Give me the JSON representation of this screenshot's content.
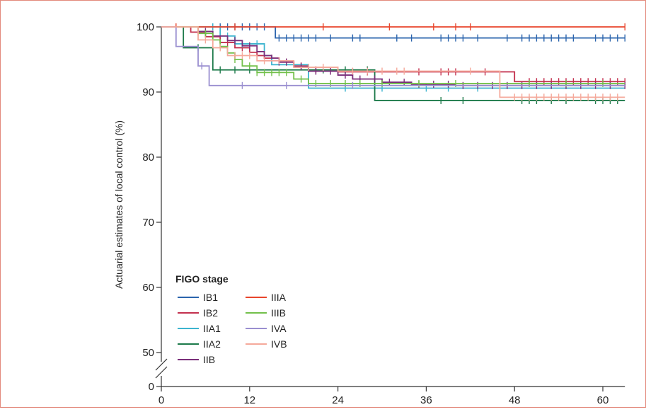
{
  "chart_data": {
    "type": "line",
    "step": true,
    "title": "",
    "xlabel": "",
    "ylabel": "Actuarial estimates of local control (%)",
    "xlim": [
      0,
      63
    ],
    "ylim": [
      0,
      100
    ],
    "y_axis_break": true,
    "x_ticks": [
      0,
      12,
      24,
      36,
      48,
      60
    ],
    "x_tick_labels": [
      "0",
      "12",
      "24",
      "36",
      "48",
      "60"
    ],
    "y_ticks": [
      0,
      50,
      60,
      70,
      80,
      90,
      100
    ],
    "y_tick_labels": [
      "0",
      "50",
      "60",
      "70",
      "80",
      "90",
      "100"
    ],
    "grid": false,
    "legend": {
      "title": "FIGO stage",
      "placement": "bottom-left",
      "columns": 2
    },
    "series": [
      {
        "name": "IB1",
        "color": "#2b64ad",
        "steps": [
          [
            0,
            100
          ],
          [
            15.5,
            98.3
          ],
          [
            63,
            98.3
          ]
        ],
        "censored": [
          7,
          8,
          9,
          10,
          11,
          12,
          13,
          14,
          16,
          17,
          18,
          19,
          20,
          21,
          23,
          26,
          27,
          32,
          34,
          38,
          39,
          40,
          41,
          43,
          47,
          49,
          50,
          51,
          52,
          53,
          54,
          55,
          56,
          59,
          60,
          61,
          62,
          63
        ]
      },
      {
        "name": "IB2",
        "color": "#c3304e",
        "steps": [
          [
            0,
            100
          ],
          [
            4,
            99.2
          ],
          [
            6,
            98.5
          ],
          [
            8,
            97.6
          ],
          [
            10,
            96.8
          ],
          [
            12,
            96.1
          ],
          [
            13,
            95.6
          ],
          [
            14,
            95.2
          ],
          [
            16,
            94.6
          ],
          [
            18,
            94.0
          ],
          [
            20,
            93.4
          ],
          [
            24,
            93.1
          ],
          [
            32,
            93.1
          ],
          [
            48,
            91.6
          ],
          [
            63,
            91.6
          ]
        ],
        "censored": [
          5,
          9,
          11,
          15,
          17,
          19,
          21,
          26,
          28,
          35,
          38,
          39,
          40,
          44,
          50,
          51,
          52,
          53,
          54,
          55,
          56,
          57,
          58,
          59,
          60,
          61,
          62,
          63
        ]
      },
      {
        "name": "IIA1",
        "color": "#3cb4cf",
        "steps": [
          [
            0,
            100
          ],
          [
            8,
            98.6
          ],
          [
            10,
            97.4
          ],
          [
            14,
            95.6
          ],
          [
            15,
            94.2
          ],
          [
            20,
            90.6
          ],
          [
            63,
            90.6
          ]
        ],
        "censored": [
          7,
          9,
          11,
          13,
          25,
          30,
          36,
          39,
          43,
          46
        ]
      },
      {
        "name": "IIA2",
        "color": "#1d7a4a",
        "steps": [
          [
            0,
            100
          ],
          [
            3,
            96.8
          ],
          [
            7,
            93.4
          ],
          [
            29,
            88.7
          ],
          [
            63,
            88.7
          ]
        ],
        "censored": [
          5,
          8,
          10,
          12,
          22,
          25,
          28,
          38,
          41,
          49,
          50,
          51,
          53,
          55,
          59,
          60,
          61,
          62
        ]
      },
      {
        "name": "IIB",
        "color": "#7a2e7a",
        "steps": [
          [
            0,
            100
          ],
          [
            5,
            99.3
          ],
          [
            7,
            98.6
          ],
          [
            9,
            97.9
          ],
          [
            11,
            97.1
          ],
          [
            13,
            96.2
          ],
          [
            14,
            95.6
          ],
          [
            15,
            95.2
          ],
          [
            16,
            94.6
          ],
          [
            18,
            93.9
          ],
          [
            20,
            93.2
          ],
          [
            24,
            92.6
          ],
          [
            26,
            92.0
          ],
          [
            30,
            91.5
          ],
          [
            34,
            91.2
          ],
          [
            40,
            91.0
          ],
          [
            63,
            91.0
          ]
        ],
        "censored": [
          6,
          10,
          12,
          16,
          17,
          19,
          21,
          23,
          25,
          27,
          29,
          31,
          33,
          35,
          37,
          39,
          41,
          43,
          45,
          47,
          49,
          51,
          53,
          55,
          57,
          59,
          61,
          63
        ]
      },
      {
        "name": "IIIA",
        "color": "#e8452c",
        "steps": [
          [
            0,
            100
          ],
          [
            63,
            100
          ]
        ],
        "censored": [
          2,
          10,
          22,
          31,
          37,
          40,
          42,
          63
        ]
      },
      {
        "name": "IIIB",
        "color": "#72c04a",
        "steps": [
          [
            0,
            100
          ],
          [
            5,
            99.0
          ],
          [
            7,
            98.0
          ],
          [
            8,
            97.0
          ],
          [
            9,
            96.0
          ],
          [
            10,
            95.0
          ],
          [
            11,
            94.0
          ],
          [
            13,
            93.0
          ],
          [
            18,
            92.0
          ],
          [
            20,
            91.3
          ],
          [
            26,
            91.3
          ],
          [
            63,
            91.3
          ]
        ],
        "censored": [
          6,
          8,
          10,
          12,
          13,
          14,
          15,
          16,
          17,
          19,
          21,
          23,
          25,
          27,
          30,
          35,
          40,
          46,
          50,
          55,
          60
        ]
      },
      {
        "name": "IVA",
        "color": "#9a8fd0",
        "steps": [
          [
            0,
            100
          ],
          [
            2,
            97.0
          ],
          [
            5,
            94.0
          ],
          [
            6.5,
            91.0
          ],
          [
            63,
            91.0
          ]
        ],
        "censored": [
          5.5,
          11,
          17,
          26
        ]
      },
      {
        "name": "IVB",
        "color": "#f5a99b",
        "steps": [
          [
            0,
            100
          ],
          [
            5,
            98.0
          ],
          [
            7,
            96.8
          ],
          [
            9,
            95.6
          ],
          [
            13,
            94.8
          ],
          [
            18,
            93.8
          ],
          [
            24,
            93.2
          ],
          [
            34,
            93.2
          ],
          [
            46,
            89.2
          ],
          [
            63,
            89.2
          ]
        ],
        "censored": [
          6,
          8,
          10,
          11,
          12,
          14,
          16,
          20,
          22,
          26,
          28,
          30,
          32,
          33,
          42,
          48,
          49,
          50,
          51,
          52,
          53,
          54,
          55,
          56,
          57,
          58,
          59,
          60,
          61,
          62
        ]
      }
    ]
  }
}
